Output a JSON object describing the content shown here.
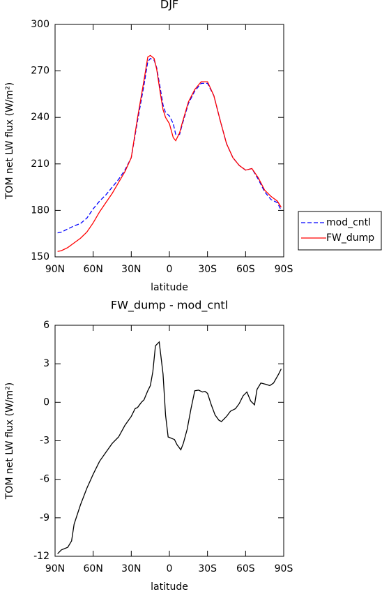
{
  "chart_data": [
    {
      "type": "line",
      "title": "DJF",
      "ylabel": "TOM net LW flux (W/m²)",
      "xlabel": "latitude",
      "x": [
        88,
        85,
        80,
        75,
        70,
        65,
        60,
        55,
        50,
        45,
        40,
        35,
        30,
        25,
        20,
        17,
        15,
        12,
        10,
        7,
        5,
        3,
        0,
        -3,
        -5,
        -8,
        -10,
        -15,
        -20,
        -25,
        -30,
        -35,
        -40,
        -45,
        -50,
        -55,
        -60,
        -65,
        -70,
        -75,
        -80,
        -85,
        -88
      ],
      "series": [
        {
          "name": "mod_cntl",
          "color": "#0000ff",
          "dash": true,
          "values": [
            165.5,
            166,
            168,
            170,
            171.5,
            175,
            181,
            186,
            190,
            195,
            200,
            206,
            214,
            238,
            261,
            276,
            278,
            277,
            272,
            258,
            248,
            243,
            241,
            236,
            229,
            229,
            235,
            249,
            257,
            262,
            262,
            254,
            238,
            223,
            214,
            209,
            206,
            207,
            200,
            192,
            187,
            185,
            180
          ]
        },
        {
          "name": "FW_dump",
          "color": "#ff0000",
          "dash": false,
          "values": [
            153.5,
            154,
            156,
            159,
            162,
            166,
            172,
            179,
            185,
            191,
            198,
            205,
            214,
            240,
            264,
            279,
            280,
            278,
            271,
            255,
            245,
            240,
            236,
            227,
            225,
            230,
            236,
            250,
            258,
            263,
            263,
            254,
            238,
            223,
            214,
            209,
            206,
            207,
            201,
            193,
            189,
            186,
            182
          ]
        }
      ],
      "xlim": [
        90,
        -90
      ],
      "xticks": [
        {
          "value": 90,
          "label": "90N"
        },
        {
          "value": 60,
          "label": "60N"
        },
        {
          "value": 30,
          "label": "30N"
        },
        0,
        {
          "value": -30,
          "label": "30S"
        },
        {
          "value": -60,
          "label": "60S"
        },
        {
          "value": -90,
          "label": "90S"
        }
      ],
      "ylim": [
        150,
        300
      ],
      "yticks": [
        150,
        180,
        210,
        240,
        270,
        300
      ],
      "grid": false,
      "legend": "right"
    },
    {
      "type": "line",
      "title": "FW_dump - mod_cntl",
      "ylabel": "TOM net LW flux (W/m²)",
      "xlabel": "latitude",
      "x": [
        88,
        85,
        80,
        77,
        75,
        70,
        65,
        60,
        55,
        50,
        45,
        40,
        35,
        30,
        27,
        25,
        22,
        20,
        17,
        15,
        13,
        11,
        8,
        5,
        3,
        1,
        -4,
        -6,
        -9,
        -11,
        -14,
        -17,
        -20,
        -23,
        -26,
        -28,
        -30,
        -33,
        -36,
        -39,
        -41,
        -45,
        -48,
        -52,
        -55,
        -58,
        -61,
        -64,
        -67,
        -69,
        -72,
        -76,
        -79,
        -82,
        -86,
        -88
      ],
      "series": [
        {
          "name": "FW_dump - mod_cntl",
          "color": "#000000",
          "dash": false,
          "values": [
            -11.8,
            -11.5,
            -11.3,
            -10.8,
            -9.5,
            -8,
            -6.7,
            -5.6,
            -4.6,
            -3.9,
            -3.2,
            -2.7,
            -1.8,
            -1.1,
            -0.5,
            -0.4,
            0,
            0.2,
            0.9,
            1.3,
            2.4,
            4.4,
            4.7,
            2.2,
            -1,
            -2.7,
            -2.9,
            -3.3,
            -3.7,
            -3.2,
            -2.1,
            -0.5,
            0.9,
            0.95,
            0.8,
            0.85,
            0.7,
            -0.2,
            -1,
            -1.4,
            -1.5,
            -1.1,
            -0.7,
            -0.5,
            -0.1,
            0.5,
            0.8,
            0.1,
            -0.2,
            1,
            1.5,
            1.4,
            1.3,
            1.5,
            2.2,
            2.6
          ]
        }
      ],
      "xlim": [
        90,
        -90
      ],
      "xticks": [
        {
          "value": 90,
          "label": "90N"
        },
        {
          "value": 60,
          "label": "60N"
        },
        {
          "value": 30,
          "label": "30N"
        },
        0,
        {
          "value": -30,
          "label": "30S"
        },
        {
          "value": -60,
          "label": "60S"
        },
        {
          "value": -90,
          "label": "90S"
        }
      ],
      "ylim": [
        -12,
        6
      ],
      "yticks": [
        -12,
        -9,
        -6,
        -3,
        0,
        3,
        6
      ],
      "grid": false
    }
  ]
}
